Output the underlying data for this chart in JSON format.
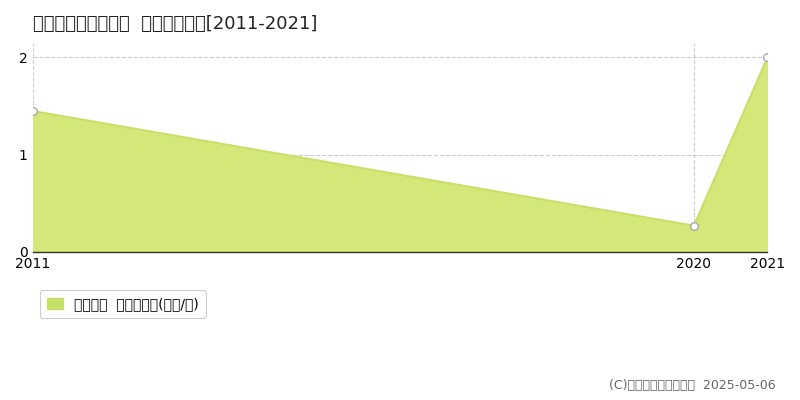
{
  "title": "いなべ市北勢町奥村  土地価格推移[2011-2021]",
  "years": [
    2011,
    2020,
    2021
  ],
  "values": [
    1.45,
    0.27,
    2.0
  ],
  "xlim": [
    2011,
    2021
  ],
  "ylim": [
    0,
    2.15
  ],
  "yticks": [
    0,
    1,
    2
  ],
  "xticks": [
    2011,
    2020,
    2021
  ],
  "line_color": "#c8e06a",
  "fill_color": "#d4e87a",
  "marker_color": "#ffffff",
  "marker_edge_color": "#aaaaaa",
  "grid_color": "#cccccc",
  "bg_color": "#ffffff",
  "legend_label": "土地価格  平均坪単価(万円/坪)",
  "copyright_text": "(C)土地価格ドットコム  2025-05-06",
  "title_fontsize": 13,
  "tick_fontsize": 10,
  "legend_fontsize": 10,
  "copyright_fontsize": 9
}
